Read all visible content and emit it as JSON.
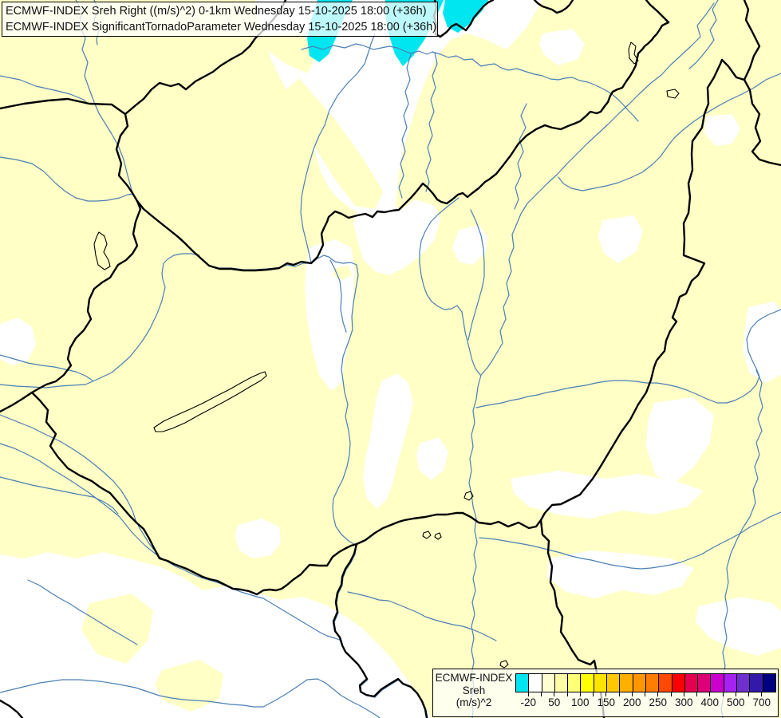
{
  "title_box": {
    "line1": "ECMWF-INDEX Sreh Right ((m/s)^2) 0-1km Wednesday 15-10-2025 18:00 (+36h)",
    "line2": "ECMWF-INDEX SignificantTornadoParameter Wednesday 15-10-2025 18:00 (+36h)"
  },
  "legend": {
    "title_lines": [
      "ECMWF-INDEX",
      "Sreh",
      "(m/s)^2"
    ],
    "tick_labels": [
      "-20",
      "50",
      "100",
      "150",
      "200",
      "250",
      "300",
      "400",
      "500",
      "700"
    ],
    "cell_colors": [
      "#00E6F0",
      "#FFFFFF",
      "#FFFFD2",
      "#FFFFA8",
      "#FFFF78",
      "#FFFF00",
      "#FFE400",
      "#FFC800",
      "#FFAF00",
      "#FF9600",
      "#FF7D00",
      "#FF4800",
      "#FF0000",
      "#E4004F",
      "#DC0078",
      "#CC00CC",
      "#A522F0",
      "#7030D0",
      "#3319A8",
      "#000080"
    ]
  },
  "map": {
    "colors": {
      "background": "#FFFFC6",
      "white_area": "#FFFFFF",
      "cyan_area": "#00E6F0",
      "river": "#4A7FB5",
      "border": "#000000",
      "lake_outline": "#000000"
    }
  }
}
